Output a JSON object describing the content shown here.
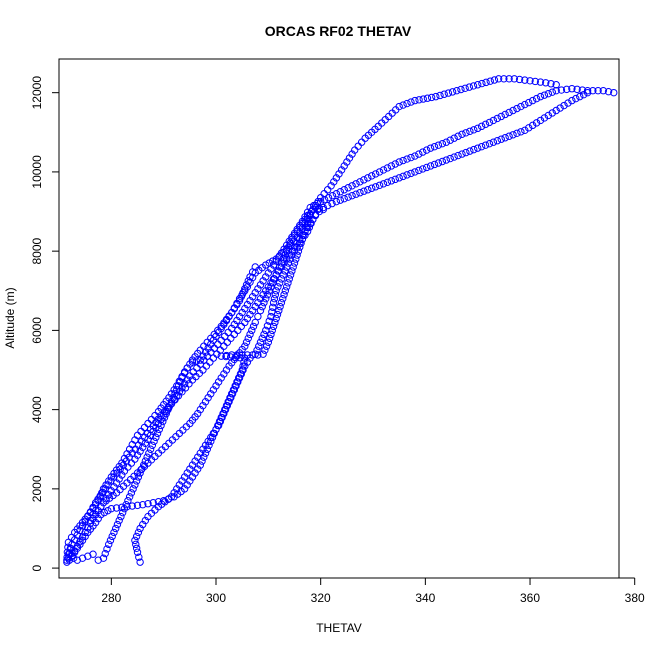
{
  "chart_data": {
    "type": "scatter",
    "title": "ORCAS RF02 THETAV",
    "xlabel": "THETAV",
    "ylabel": "Altitude (m)",
    "xlim": [
      270,
      377
    ],
    "ylim": [
      -250,
      12850
    ],
    "xticks": [
      280,
      300,
      320,
      340,
      360,
      380
    ],
    "yticks": [
      0,
      2000,
      4000,
      6000,
      8000,
      10000,
      12000
    ],
    "grid": false,
    "marker": "open-circle",
    "color": "#0000ff",
    "series": [
      {
        "points": [
          [
            271.5,
            150
          ],
          [
            271.6,
            400
          ],
          [
            271.8,
            650
          ],
          [
            273,
            900
          ],
          [
            274.5,
            1150
          ],
          [
            276,
            1400
          ],
          [
            277.5,
            1700
          ],
          [
            278.5,
            2000
          ],
          [
            280,
            2300
          ],
          [
            282,
            2650
          ],
          [
            283.5,
            3000
          ],
          [
            285,
            3350
          ],
          [
            287,
            3650
          ],
          [
            289,
            3950
          ],
          [
            291,
            4300
          ],
          [
            292.5,
            4600
          ],
          [
            294,
            4950
          ],
          [
            295.5,
            5250
          ],
          [
            297,
            5500
          ],
          [
            299,
            5800
          ],
          [
            301,
            6100
          ],
          [
            303,
            6450
          ],
          [
            304.5,
            6800
          ],
          [
            306,
            7100
          ],
          [
            307.5,
            7450
          ],
          [
            309.5,
            7650
          ],
          [
            311.5,
            7800
          ],
          [
            313.5,
            8050
          ],
          [
            315.5,
            8350
          ],
          [
            317,
            8700
          ],
          [
            318.5,
            9050
          ],
          [
            320,
            9350
          ],
          [
            322,
            9650
          ],
          [
            323.5,
            9950
          ],
          [
            325,
            10250
          ],
          [
            326.5,
            10550
          ],
          [
            328.5,
            10850
          ],
          [
            331,
            11150
          ],
          [
            333,
            11400
          ],
          [
            335,
            11650
          ],
          [
            338,
            11800
          ],
          [
            342,
            11900
          ],
          [
            346,
            12050
          ],
          [
            350,
            12200
          ],
          [
            354,
            12350
          ],
          [
            357,
            12350
          ],
          [
            360,
            12300
          ],
          [
            363,
            12250
          ],
          [
            365,
            12200
          ]
        ]
      },
      {
        "points": [
          [
            272,
            200
          ],
          [
            273.5,
            550
          ],
          [
            275,
            900
          ],
          [
            276.5,
            1250
          ],
          [
            278,
            1550
          ],
          [
            279.5,
            1850
          ],
          [
            281,
            2150
          ],
          [
            282.5,
            2450
          ],
          [
            284.5,
            2750
          ],
          [
            286,
            3050
          ],
          [
            287.5,
            3350
          ],
          [
            289,
            3650
          ],
          [
            290.5,
            3950
          ],
          [
            292,
            4250
          ],
          [
            293.5,
            4550
          ],
          [
            295,
            4850
          ],
          [
            297,
            5150
          ],
          [
            299,
            5450
          ],
          [
            301,
            5750
          ],
          [
            303,
            6050
          ],
          [
            304.5,
            6350
          ],
          [
            306,
            6650
          ],
          [
            307.5,
            6950
          ],
          [
            309,
            7250
          ],
          [
            310.5,
            7550
          ],
          [
            312,
            7850
          ],
          [
            313.5,
            8150
          ],
          [
            315,
            8450
          ],
          [
            316.5,
            8750
          ],
          [
            318,
            9100
          ],
          [
            320,
            9250
          ],
          [
            323,
            9450
          ],
          [
            326,
            9650
          ],
          [
            329,
            9850
          ],
          [
            332,
            10050
          ],
          [
            335,
            10250
          ],
          [
            338,
            10400
          ],
          [
            341,
            10600
          ],
          [
            344,
            10750
          ],
          [
            347,
            10950
          ],
          [
            350,
            11100
          ],
          [
            353,
            11300
          ],
          [
            356,
            11500
          ],
          [
            359,
            11700
          ],
          [
            362,
            11900
          ],
          [
            365,
            12050
          ],
          [
            368,
            12100
          ],
          [
            371,
            12050
          ],
          [
            374,
            12050
          ],
          [
            376,
            12000
          ]
        ]
      },
      {
        "points": [
          [
            271.8,
            250
          ],
          [
            272.5,
            600
          ],
          [
            274,
            950
          ],
          [
            275.5,
            1300
          ],
          [
            277,
            1650
          ],
          [
            278.8,
            2000
          ],
          [
            280.5,
            2300
          ],
          [
            282.3,
            2600
          ],
          [
            284,
            2900
          ],
          [
            285.8,
            3200
          ],
          [
            287.5,
            3500
          ],
          [
            289.5,
            3850
          ],
          [
            291.5,
            4150
          ],
          [
            293.5,
            4450
          ],
          [
            295.5,
            4750
          ],
          [
            297.5,
            5000
          ],
          [
            299.5,
            5300
          ],
          [
            301.5,
            5600
          ],
          [
            303.5,
            5900
          ],
          [
            305.5,
            6200
          ],
          [
            307,
            6500
          ],
          [
            308.5,
            6800
          ],
          [
            310,
            7100
          ],
          [
            311.5,
            7400
          ],
          [
            313,
            7700
          ],
          [
            314.5,
            8000
          ],
          [
            316,
            8300
          ],
          [
            317.5,
            8600
          ],
          [
            319,
            8900
          ],
          [
            320.5,
            9100
          ],
          [
            323,
            9250
          ],
          [
            326,
            9400
          ],
          [
            329,
            9550
          ],
          [
            332,
            9700
          ],
          [
            335,
            9850
          ],
          [
            338,
            10000
          ],
          [
            341,
            10150
          ],
          [
            344,
            10300
          ],
          [
            347,
            10450
          ],
          [
            350,
            10600
          ],
          [
            353,
            10750
          ],
          [
            356,
            10900
          ],
          [
            359,
            11050
          ],
          [
            362,
            11300
          ],
          [
            365,
            11550
          ],
          [
            368,
            11800
          ],
          [
            371,
            12000
          ]
        ]
      },
      {
        "points": [
          [
            285.5,
            150
          ],
          [
            285,
            400
          ],
          [
            284.5,
            700
          ],
          [
            285.5,
            1000
          ],
          [
            287,
            1300
          ],
          [
            289,
            1550
          ],
          [
            291.5,
            1800
          ],
          [
            293,
            2100
          ],
          [
            294.5,
            2400
          ],
          [
            296,
            2700
          ],
          [
            297.5,
            3000
          ],
          [
            299,
            3300
          ],
          [
            300.5,
            3600
          ],
          [
            301.5,
            3900
          ],
          [
            302.5,
            4200
          ],
          [
            303.5,
            4500
          ],
          [
            304.5,
            4800
          ],
          [
            305.5,
            5100
          ],
          [
            306.5,
            5300
          ],
          [
            307.5,
            5400
          ],
          [
            308.5,
            5700
          ],
          [
            309.5,
            6000
          ],
          [
            310.5,
            6350
          ],
          [
            311,
            6700
          ],
          [
            311.5,
            7000
          ],
          [
            312.5,
            7300
          ],
          [
            313.5,
            7600
          ],
          [
            314.5,
            7900
          ],
          [
            316,
            8200
          ],
          [
            317.5,
            8500
          ],
          [
            318.5,
            8800
          ],
          [
            319.5,
            9050
          ]
        ]
      },
      {
        "points": [
          [
            272.5,
            300
          ],
          [
            274,
            600
          ],
          [
            275.5,
            900
          ],
          [
            277,
            1150
          ],
          [
            278,
            1350
          ],
          [
            280,
            1500
          ],
          [
            283,
            1550
          ],
          [
            286,
            1600
          ],
          [
            288,
            1650
          ],
          [
            290,
            1700
          ],
          [
            292,
            1800
          ],
          [
            294,
            2000
          ],
          [
            295.5,
            2300
          ],
          [
            297,
            2600
          ],
          [
            298,
            2900
          ],
          [
            299,
            3200
          ],
          [
            300,
            3500
          ],
          [
            301,
            3800
          ],
          [
            302,
            4100
          ],
          [
            303,
            4400
          ],
          [
            304,
            4700
          ],
          [
            305,
            5000
          ],
          [
            305.5,
            5300
          ],
          [
            301,
            5350
          ],
          [
            303,
            5380
          ],
          [
            306,
            5380
          ],
          [
            308,
            5380
          ],
          [
            309,
            5400
          ],
          [
            310,
            5700
          ],
          [
            311,
            6100
          ],
          [
            312,
            6500
          ],
          [
            313,
            6900
          ],
          [
            314,
            7300
          ],
          [
            315,
            7700
          ],
          [
            316,
            8100
          ],
          [
            317,
            8500
          ],
          [
            318,
            8900
          ]
        ]
      },
      {
        "points": [
          [
            276,
            1200
          ],
          [
            276.5,
            1350
          ],
          [
            277,
            1450
          ],
          [
            278,
            1550
          ],
          [
            279,
            1700
          ],
          [
            281,
            1900
          ],
          [
            283,
            2150
          ],
          [
            285,
            2400
          ],
          [
            287,
            2650
          ],
          [
            289,
            2900
          ],
          [
            291,
            3150
          ],
          [
            293,
            3400
          ],
          [
            295,
            3650
          ],
          [
            296.5,
            3900
          ],
          [
            298,
            4200
          ],
          [
            299.5,
            4500
          ],
          [
            301,
            4800
          ],
          [
            302.5,
            5100
          ],
          [
            304,
            5350
          ],
          [
            305.5,
            5600
          ],
          [
            306.5,
            5900
          ],
          [
            307.5,
            6200
          ],
          [
            308,
            6350
          ],
          [
            308.5,
            6500
          ],
          [
            309.5,
            6800
          ],
          [
            310.5,
            7100
          ],
          [
            311.5,
            7400
          ],
          [
            312.5,
            7700
          ],
          [
            313.5,
            8000
          ],
          [
            314.5,
            8300
          ],
          [
            316,
            8600
          ],
          [
            317.5,
            8900
          ],
          [
            319,
            9100
          ],
          [
            320.5,
            9050
          ]
        ]
      },
      {
        "points": [
          [
            271.5,
            200
          ],
          [
            271.8,
            350
          ],
          [
            272.2,
            500
          ],
          [
            272.8,
            250
          ],
          [
            273.5,
            200
          ],
          [
            274.5,
            250
          ],
          [
            275.5,
            300
          ],
          [
            276.5,
            350
          ],
          [
            277.5,
            200
          ],
          [
            278.5,
            250
          ],
          [
            279.5,
            600
          ],
          [
            280.5,
            900
          ],
          [
            281.5,
            1200
          ],
          [
            282.5,
            1500
          ],
          [
            283.5,
            1800
          ],
          [
            284.5,
            2100
          ],
          [
            285.5,
            2400
          ],
          [
            286.5,
            2700
          ],
          [
            287.5,
            3000
          ],
          [
            288.5,
            3300
          ],
          [
            289.5,
            3600
          ],
          [
            290.5,
            3900
          ],
          [
            291.5,
            4200
          ],
          [
            292.5,
            4500
          ],
          [
            293.5,
            4800
          ],
          [
            294.5,
            5050
          ],
          [
            295.5,
            5200
          ],
          [
            297,
            5250
          ],
          [
            298.5,
            5550
          ],
          [
            300,
            5850
          ],
          [
            301.5,
            6150
          ],
          [
            303,
            6450
          ],
          [
            304.5,
            6750
          ],
          [
            305.5,
            7050
          ],
          [
            306.5,
            7350
          ],
          [
            307.5,
            7600
          ]
        ]
      }
    ]
  }
}
